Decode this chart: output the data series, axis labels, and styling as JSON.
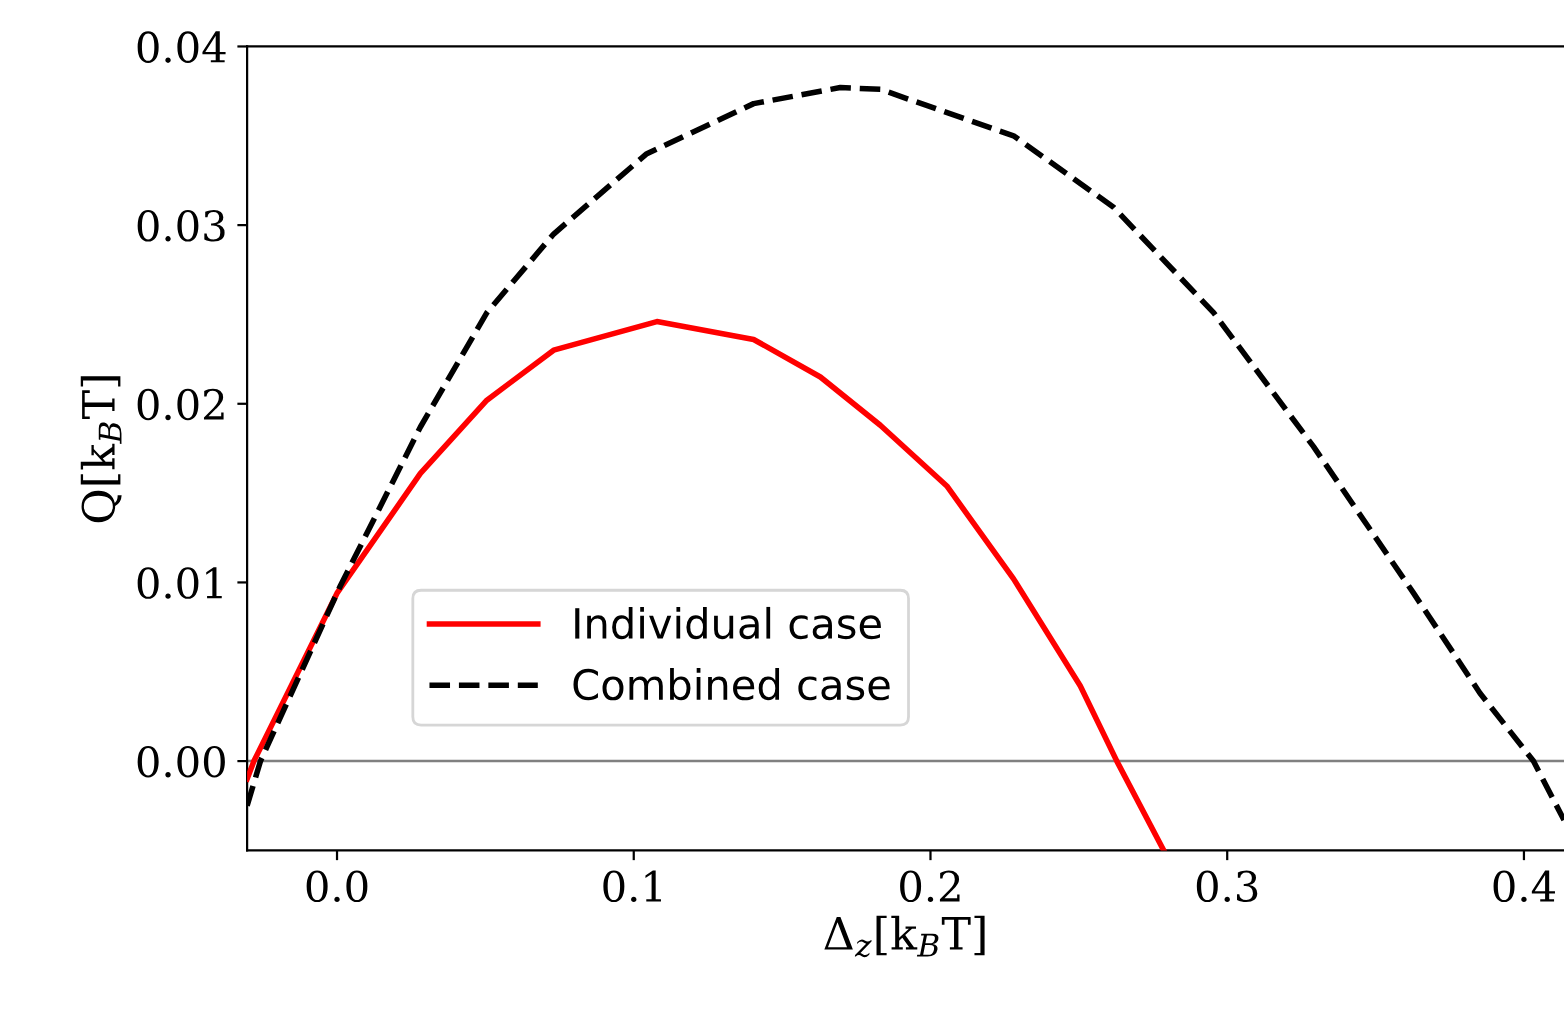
{
  "chart_data": {
    "type": "line",
    "xlabel": "Δ$_{z}$[k$_{B}$T]",
    "ylabel": "Q[k$_{B}$T]",
    "xlim": [
      -0.0303,
      0.4135
    ],
    "ylim": [
      -0.005,
      0.04
    ],
    "xticks": [
      {
        "value": 0.0,
        "label": "0.0"
      },
      0.1,
      0.2,
      0.3,
      0.4
    ],
    "yticks": [
      {
        "value": 0.0,
        "label": "0.00"
      },
      0.01,
      0.02,
      0.03,
      {
        "value": 0.04,
        "label": "0.04"
      }
    ],
    "grid": false,
    "legend": "lower left",
    "marker": "none",
    "ref_lines": [
      {
        "axis": "y",
        "value": 0,
        "color": "#808080"
      }
    ],
    "series": [
      {
        "name": "Individual case",
        "color": "#ff0000",
        "line_style": "solid",
        "x": [
          -0.0303,
          -0.028,
          0.0,
          0.0281,
          0.0505,
          0.073,
          0.1078,
          0.1404,
          0.1629,
          0.1831,
          0.2055,
          0.228,
          0.2505,
          0.2628,
          0.2786
        ],
        "values": [
          -0.001,
          0.0,
          0.0094,
          0.0161,
          0.0202,
          0.023,
          0.0246,
          0.0236,
          0.0215,
          0.0188,
          0.0154,
          0.0102,
          0.0042,
          0.0,
          -0.005
        ]
      },
      {
        "name": "Combined case",
        "color": "#000000",
        "line_style": "dashed",
        "x": [
          -0.0303,
          -0.0258,
          0.0011,
          0.0281,
          0.0505,
          0.073,
          0.1044,
          0.1404,
          0.1696,
          0.1831,
          0.228,
          0.2617,
          0.2954,
          0.3291,
          0.3628,
          0.3852,
          0.4032,
          0.4135
        ],
        "values": [
          -0.0025,
          0.0,
          0.0098,
          0.0187,
          0.0251,
          0.0295,
          0.034,
          0.0368,
          0.0377,
          0.0376,
          0.035,
          0.031,
          0.0251,
          0.0176,
          0.0094,
          0.0038,
          0.0,
          -0.0033
        ]
      }
    ]
  }
}
